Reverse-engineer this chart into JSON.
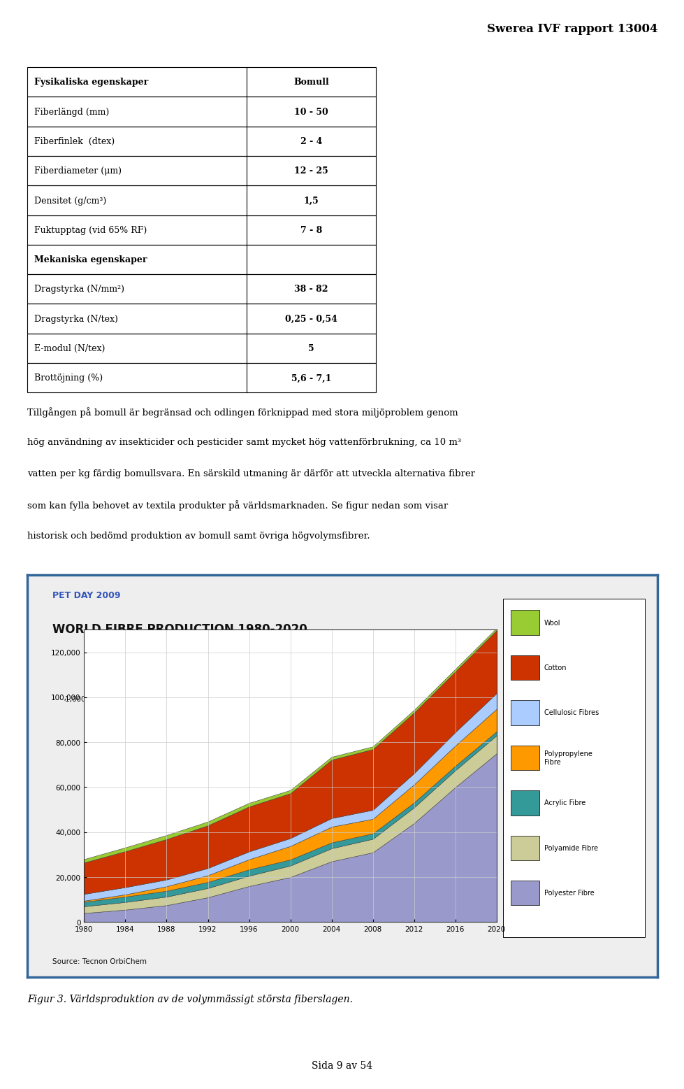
{
  "header": "Swerea IVF rapport 13004",
  "table_title_col1": "Fysikaliska egenskaper",
  "table_title_col2": "Bomull",
  "table_rows": [
    [
      "Fiberlängd (mm)",
      "10 - 50"
    ],
    [
      "Fiberfinlek  (dtex)",
      "2 - 4"
    ],
    [
      "Fiberdiameter (μm)",
      "12 - 25"
    ],
    [
      "Densitet (g/cm³)",
      "1,5"
    ],
    [
      "Fuktupptag (vid 65% RF)",
      "7 - 8"
    ],
    [
      "Mekaniska egenskaper",
      ""
    ],
    [
      "Dragstyrka (N/mm²)",
      "38 - 82"
    ],
    [
      "Dragstyrka (N/tex)",
      "0,25 - 0,54"
    ],
    [
      "E-modul (N/tex)",
      "5"
    ],
    [
      "Brottöjning (%)",
      "5,6 - 7,1"
    ]
  ],
  "bold_rows": [
    0,
    5
  ],
  "body_lines": [
    "Tillgången på bomull är begränsad och odlingen förknippad med stora miljöproblem genom",
    "hög användning av insekticider och pesticider samt mycket hög vattenförbrukning, ca 10 m³",
    "vatten per kg färdig bomullsvara. En särskild utmaning är därför att utveckla alternativa fibrer",
    "som kan fylla behovet av textila produkter på världsmarknaden. Se figur nedan som visar",
    "historisk och bedömd produktion av bomull samt övriga högvolymsfibrer."
  ],
  "chart_title_line1": "PET DAY 2009",
  "chart_title_line2": "WORLD FIBRE PRODUCTION 1980-2020",
  "chart_ylabel": "1,000 Metric Tons",
  "chart_source": "Source: Tecnon OrbiChem",
  "figure_caption": "Figur 3. Världsproduktion av de volymmässigt största fiberslagen.",
  "page_number": "Sida 9 av 54",
  "years": [
    1980,
    1984,
    1988,
    1992,
    1996,
    2000,
    2004,
    2008,
    2012,
    2016,
    2020
  ],
  "polyester": [
    4000,
    5500,
    7500,
    11000,
    16000,
    20000,
    27000,
    31000,
    44000,
    60000,
    75000
  ],
  "polyamide": [
    3000,
    3400,
    3800,
    4100,
    4600,
    5100,
    5800,
    6000,
    7000,
    7500,
    8000
  ],
  "acrylic": [
    2000,
    2400,
    2600,
    2700,
    2800,
    2700,
    2600,
    2400,
    2200,
    2000,
    1800
  ],
  "polypropylene": [
    500,
    1000,
    2000,
    3000,
    4500,
    6000,
    7000,
    6500,
    8000,
    9000,
    10000
  ],
  "cellulosic": [
    3000,
    3200,
    3000,
    3200,
    3500,
    3500,
    3800,
    4000,
    5000,
    6000,
    7000
  ],
  "cotton": [
    14000,
    16000,
    18000,
    19000,
    20000,
    20000,
    26000,
    27000,
    27000,
    27000,
    28000
  ],
  "wool": [
    1500,
    1700,
    1800,
    1700,
    1600,
    1400,
    1300,
    1200,
    1200,
    1100,
    1000
  ],
  "colors": {
    "polyester": "#9999cc",
    "polyamide": "#cccc99",
    "acrylic": "#339999",
    "polypropylene": "#ff9900",
    "cellulosic": "#aaccff",
    "cotton": "#cc3300",
    "wool": "#99cc33"
  },
  "bg_color": "#ffffff"
}
